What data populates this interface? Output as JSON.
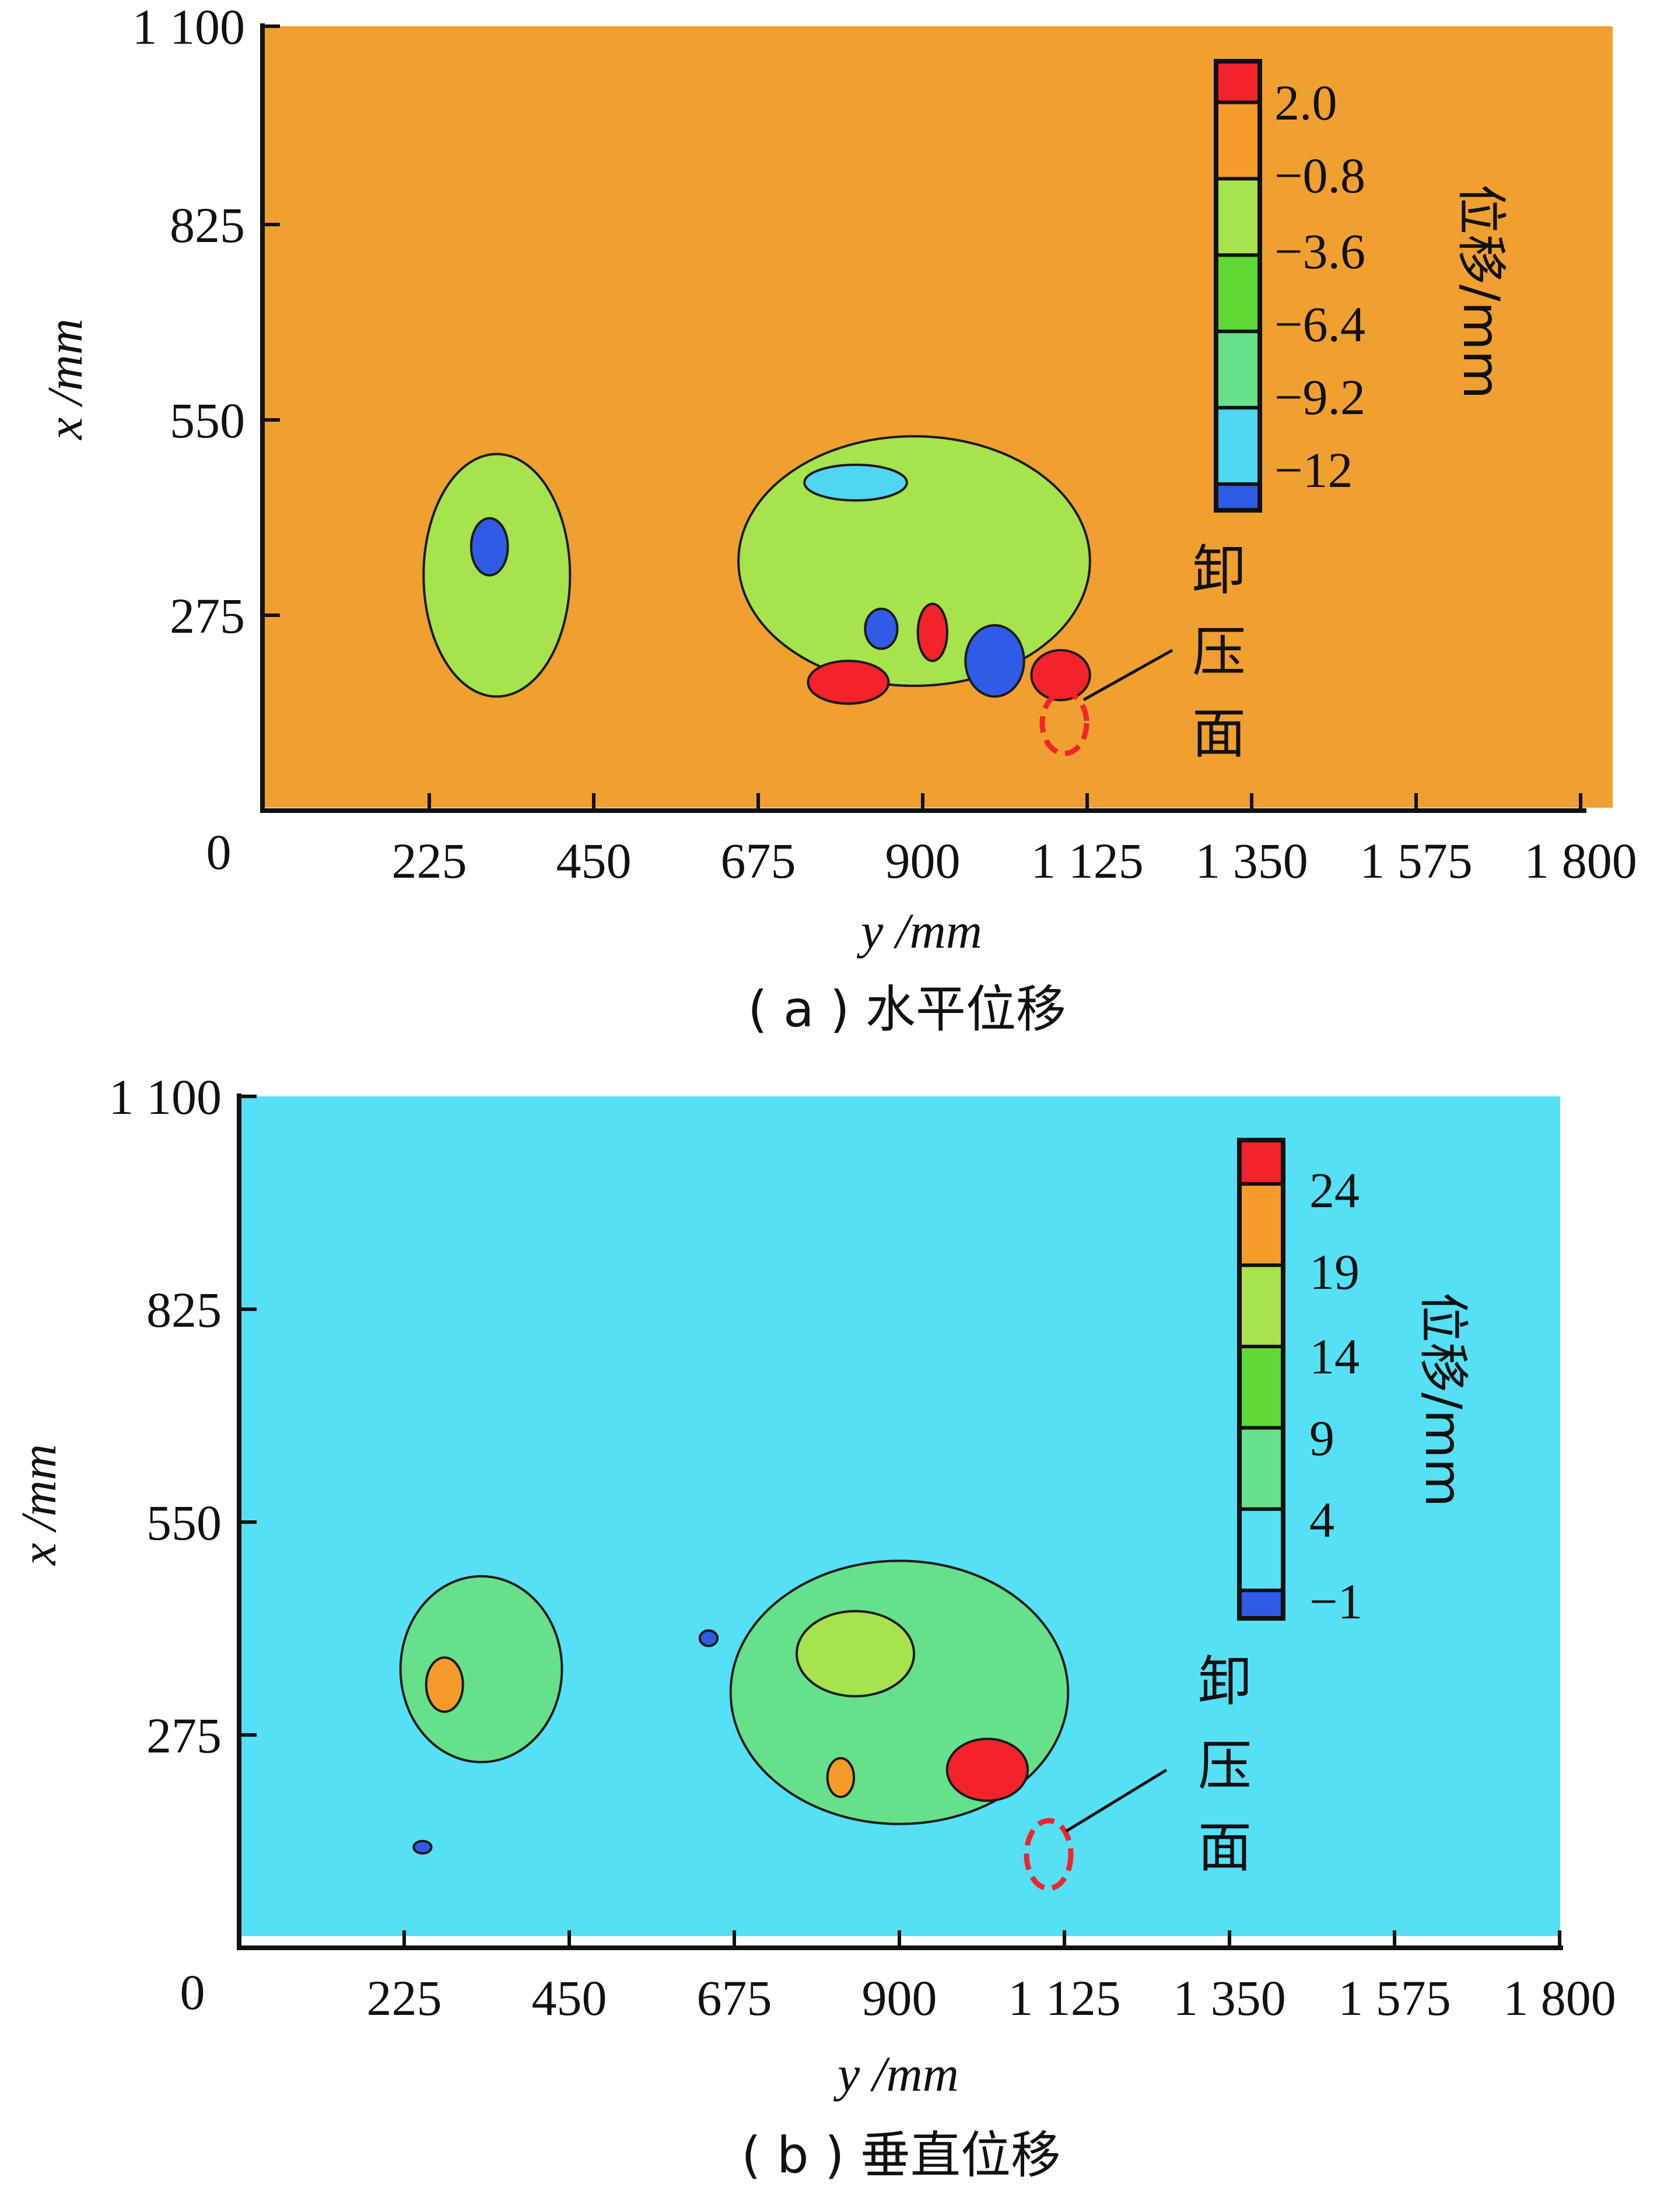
{
  "chart_data": [
    {
      "type": "contour",
      "caption": "( a ) 水平位移",
      "xlabel": "y /mm",
      "ylabel": "x /mm",
      "x_ticks": [
        "0",
        "225",
        "450",
        "675",
        "900",
        "1 125",
        "1 350",
        "1 575",
        "1 800"
      ],
      "y_ticks": [
        "1 100",
        "825",
        "550",
        "275"
      ],
      "xlim": [
        0,
        1800
      ],
      "ylim": [
        0,
        1100
      ],
      "background_color": "#F0A030",
      "colorbar": {
        "title": "位移/mm",
        "labels": [
          "2.0",
          "−0.8",
          "−3.6",
          "−6.4",
          "−9.2",
          "−12"
        ],
        "colors": [
          "#F2232A",
          "#F59B2C",
          "#A6E34D",
          "#5FD935",
          "#66E08A",
          "#4FD6F0",
          "#2F5BE6"
        ]
      },
      "annotation": {
        "lines": [
          "卸",
          "压",
          "面"
        ]
      },
      "regions": [
        {
          "name": "left-blob",
          "color": "#A6E34D",
          "cx": 320,
          "cy": 330,
          "rx": 100,
          "ry": 170
        },
        {
          "name": "left-blob-blue",
          "color": "#2F5BE6",
          "cx": 310,
          "cy": 370,
          "rx": 25,
          "ry": 40
        },
        {
          "name": "center-blob",
          "color": "#A6E34D",
          "cx": 890,
          "cy": 350,
          "rx": 240,
          "ry": 175
        },
        {
          "name": "center-cyan",
          "color": "#4FD6F0",
          "cx": 810,
          "cy": 460,
          "rx": 70,
          "ry": 25
        },
        {
          "name": "red-1",
          "color": "#F2232A",
          "cx": 800,
          "cy": 180,
          "rx": 55,
          "ry": 30
        },
        {
          "name": "red-2",
          "color": "#F2232A",
          "cx": 915,
          "cy": 250,
          "rx": 20,
          "ry": 40
        },
        {
          "name": "red-3",
          "color": "#F2232A",
          "cx": 1090,
          "cy": 190,
          "rx": 40,
          "ry": 35
        },
        {
          "name": "blue-1",
          "color": "#2F5BE6",
          "cx": 845,
          "cy": 255,
          "rx": 22,
          "ry": 28
        },
        {
          "name": "blue-2",
          "color": "#2F5BE6",
          "cx": 1000,
          "cy": 210,
          "rx": 40,
          "ry": 50
        }
      ]
    },
    {
      "type": "contour",
      "caption": "( b ) 垂直位移",
      "xlabel": "y /mm",
      "ylabel": "x /mm",
      "x_ticks": [
        "0",
        "225",
        "450",
        "675",
        "900",
        "1 125",
        "1 350",
        "1 575",
        "1 800"
      ],
      "y_ticks": [
        "1 100",
        "825",
        "550",
        "275"
      ],
      "xlim": [
        0,
        1800
      ],
      "ylim": [
        0,
        1100
      ],
      "background_color": "#55E0F5",
      "colorbar": {
        "title": "位移/mm",
        "labels": [
          "24",
          "19",
          "14",
          "9",
          "4",
          "−1"
        ],
        "colors": [
          "#F2232A",
          "#F59B2C",
          "#A6E34D",
          "#5FD935",
          "#66E08A",
          "#55E0F5",
          "#2F5BE6"
        ]
      },
      "annotation": {
        "lines": [
          "卸",
          "压",
          "面"
        ]
      },
      "regions": [
        {
          "name": "left-blob",
          "color": "#66E08A",
          "cx": 330,
          "cy": 360,
          "rx": 110,
          "ry": 120
        },
        {
          "name": "left-blob-orange",
          "color": "#F59B2C",
          "cx": 280,
          "cy": 340,
          "rx": 25,
          "ry": 35
        },
        {
          "name": "center-blob",
          "color": "#66E08A",
          "cx": 900,
          "cy": 330,
          "rx": 230,
          "ry": 170
        },
        {
          "name": "center-yellow",
          "color": "#A6E34D",
          "cx": 840,
          "cy": 380,
          "rx": 80,
          "ry": 55
        },
        {
          "name": "red-main",
          "color": "#F2232A",
          "cx": 1020,
          "cy": 230,
          "rx": 55,
          "ry": 40
        },
        {
          "name": "orange-small",
          "color": "#F59B2C",
          "cx": 820,
          "cy": 220,
          "rx": 18,
          "ry": 25
        },
        {
          "name": "blue-dot-1",
          "color": "#2F5BE6",
          "cx": 640,
          "cy": 400,
          "rx": 12,
          "ry": 10
        },
        {
          "name": "blue-dot-2",
          "color": "#2F5BE6",
          "cx": 250,
          "cy": 130,
          "rx": 12,
          "ry": 8
        }
      ]
    }
  ]
}
